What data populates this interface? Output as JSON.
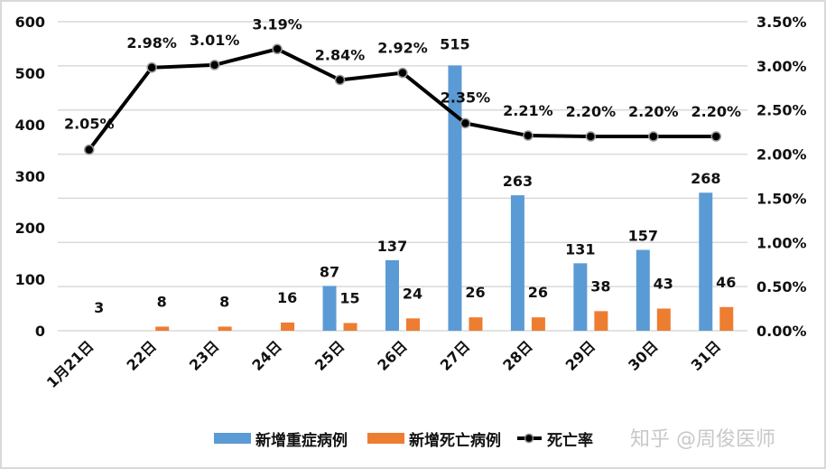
{
  "chart_data": {
    "type": "bar+line",
    "title": "",
    "categories": [
      "1月21日",
      "22日",
      "23日",
      "24日",
      "25日",
      "26日",
      "27日",
      "28日",
      "29日",
      "30日",
      "31日"
    ],
    "series": [
      {
        "name": "新增重症病例",
        "type": "bar",
        "axis": "left",
        "color": "#5B9BD5",
        "values": [
          null,
          null,
          null,
          null,
          87,
          137,
          515,
          263,
          131,
          157,
          268
        ]
      },
      {
        "name": "新增死亡病例",
        "type": "bar",
        "axis": "left",
        "color": "#ED7D31",
        "values": [
          3,
          8,
          8,
          16,
          15,
          24,
          26,
          26,
          38,
          43,
          46
        ]
      },
      {
        "name": "死亡率",
        "type": "line",
        "axis": "right",
        "color": "#000000",
        "values": [
          2.05,
          2.98,
          3.01,
          3.19,
          2.84,
          2.92,
          2.35,
          2.21,
          2.2,
          2.2,
          2.2
        ],
        "labels": [
          "2.05%",
          "2.98%",
          "3.01%",
          "3.19%",
          "2.84%",
          "2.92%",
          "2.35%",
          "2.21%",
          "2.20%",
          "2.20%",
          "2.20%"
        ]
      }
    ],
    "left_axis": {
      "ylim": [
        0,
        600
      ],
      "ticks": [
        "0",
        "100",
        "200",
        "300",
        "400",
        "500",
        "600"
      ]
    },
    "right_axis": {
      "ylim": [
        0,
        3.5
      ],
      "ticks": [
        "0.00%",
        "0.50%",
        "1.00%",
        "1.50%",
        "2.00%",
        "2.50%",
        "3.00%",
        "3.50%"
      ]
    },
    "xlabel": "",
    "ylabel": "",
    "grid": true,
    "legend_position": "bottom"
  },
  "legend": [
    {
      "label": "新增重症病例",
      "color": "#5B9BD5"
    },
    {
      "label": "新增死亡病例",
      "color": "#ED7D31"
    },
    {
      "label": "死亡率",
      "color": "#000000"
    }
  ],
  "watermark": "知乎 @周俊医师"
}
